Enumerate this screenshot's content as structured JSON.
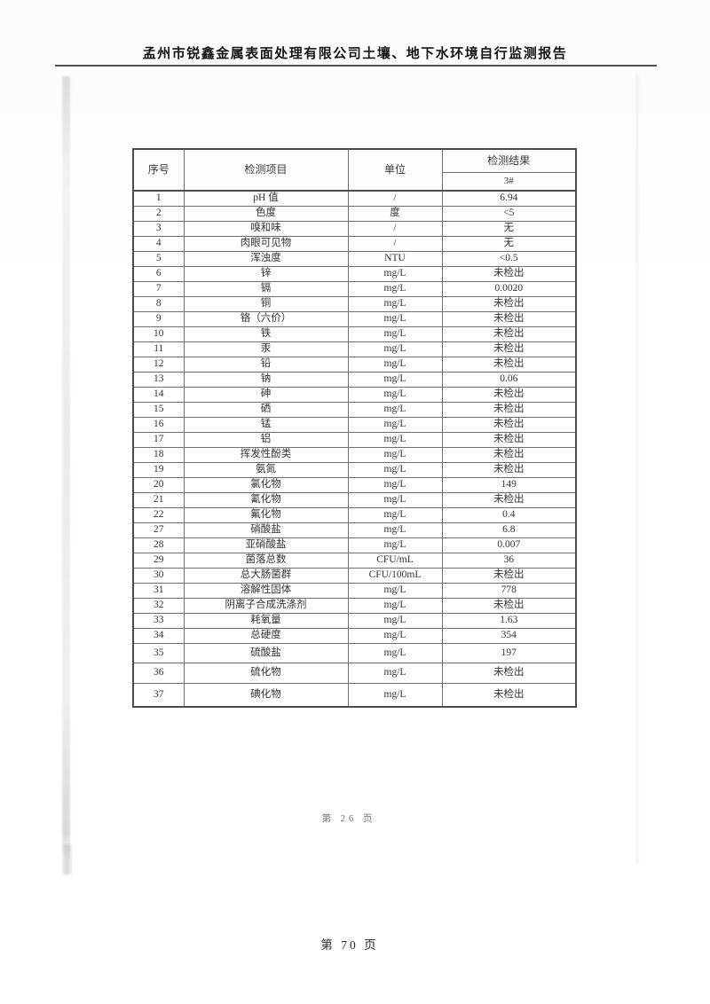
{
  "page": {
    "header_title": "孟州市锐鑫金属表面处理有限公司土壤、地下水环境自行监测报告",
    "inner_page_number": "第 26 页",
    "outer_page_number": "第 70 页"
  },
  "table": {
    "headers": {
      "col_index": "序号",
      "col_item": "检测项目",
      "col_unit": "单位",
      "col_result": "检测结果",
      "result_sub_label": "3#"
    },
    "rows": [
      {
        "no": "1",
        "item": "pH 值",
        "unit": "/",
        "result": "6.94"
      },
      {
        "no": "2",
        "item": "色度",
        "unit": "度",
        "result": "<5"
      },
      {
        "no": "3",
        "item": "嗅和味",
        "unit": "/",
        "result": "无"
      },
      {
        "no": "4",
        "item": "肉眼可见物",
        "unit": "/",
        "result": "无"
      },
      {
        "no": "5",
        "item": "浑浊度",
        "unit": "NTU",
        "result": "<0.5"
      },
      {
        "no": "6",
        "item": "锌",
        "unit": "mg/L",
        "result": "未检出"
      },
      {
        "no": "7",
        "item": "镉",
        "unit": "mg/L",
        "result": "0.0020"
      },
      {
        "no": "8",
        "item": "铜",
        "unit": "mg/L",
        "result": "未检出"
      },
      {
        "no": "9",
        "item": "铬（六价）",
        "unit": "mg/L",
        "result": "未检出"
      },
      {
        "no": "10",
        "item": "铁",
        "unit": "mg/L",
        "result": "未检出"
      },
      {
        "no": "11",
        "item": "汞",
        "unit": "mg/L",
        "result": "未检出"
      },
      {
        "no": "12",
        "item": "铅",
        "unit": "mg/L",
        "result": "未检出"
      },
      {
        "no": "13",
        "item": "钠",
        "unit": "mg/L",
        "result": "0.06"
      },
      {
        "no": "14",
        "item": "砷",
        "unit": "mg/L",
        "result": "未检出"
      },
      {
        "no": "15",
        "item": "硒",
        "unit": "mg/L",
        "result": "未检出"
      },
      {
        "no": "16",
        "item": "锰",
        "unit": "mg/L",
        "result": "未检出"
      },
      {
        "no": "17",
        "item": "铝",
        "unit": "mg/L",
        "result": "未检出"
      },
      {
        "no": "18",
        "item": "挥发性酚类",
        "unit": "mg/L",
        "result": "未检出"
      },
      {
        "no": "19",
        "item": "氨氮",
        "unit": "mg/L",
        "result": "未检出"
      },
      {
        "no": "20",
        "item": "氯化物",
        "unit": "mg/L",
        "result": "149"
      },
      {
        "no": "21",
        "item": "氰化物",
        "unit": "mg/L",
        "result": "未检出"
      },
      {
        "no": "22",
        "item": "氟化物",
        "unit": "mg/L",
        "result": "0.4"
      },
      {
        "no": "27",
        "item": "硝酸盐",
        "unit": "mg/L",
        "result": "6.8"
      },
      {
        "no": "28",
        "item": "亚硝酸盐",
        "unit": "mg/L",
        "result": "0.007"
      },
      {
        "no": "29",
        "item": "菌落总数",
        "unit": "CFU/mL",
        "result": "36"
      },
      {
        "no": "30",
        "item": "总大肠菌群",
        "unit": "CFU/100mL",
        "result": "未检出"
      },
      {
        "no": "31",
        "item": "溶解性固体",
        "unit": "mg/L",
        "result": "778"
      },
      {
        "no": "32",
        "item": "阴离子合成洗涤剂",
        "unit": "mg/L",
        "result": "未检出"
      },
      {
        "no": "33",
        "item": "耗氧量",
        "unit": "mg/L",
        "result": "1.63"
      },
      {
        "no": "34",
        "item": "总硬度",
        "unit": "mg/L",
        "result": "354"
      },
      {
        "no": "35",
        "item": "硫酸盐",
        "unit": "mg/L",
        "result": "197"
      },
      {
        "no": "36",
        "item": "硫化物",
        "unit": "mg/L",
        "result": "未检出"
      },
      {
        "no": "37",
        "item": "碘化物",
        "unit": "mg/L",
        "result": "未检出"
      }
    ]
  }
}
